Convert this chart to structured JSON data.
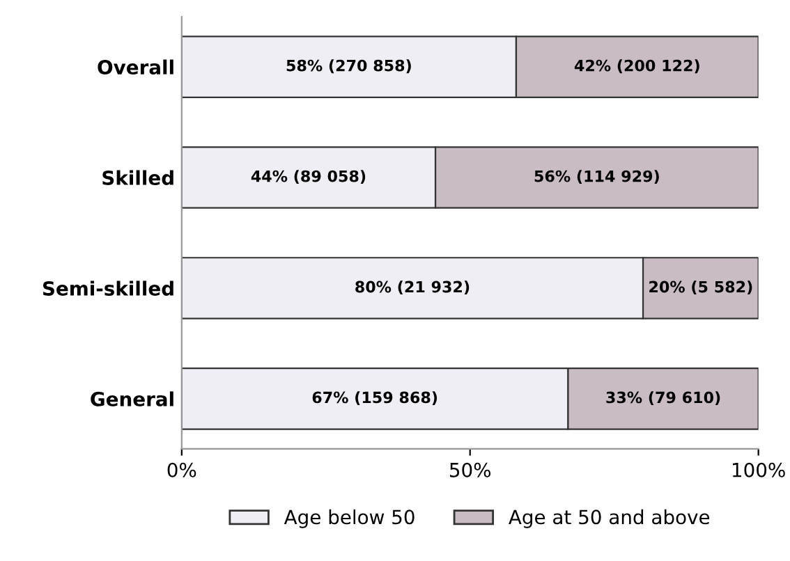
{
  "chart_data": {
    "type": "bar",
    "orientation": "horizontal",
    "stacked": true,
    "categories": [
      "Overall",
      "Skilled",
      "Semi-skilled",
      "General"
    ],
    "series": [
      {
        "name": "Age below 50",
        "color": "#eeeef4",
        "values": [
          58,
          44,
          80,
          67
        ],
        "value_labels": [
          "58% (270 858)",
          "44% (89 058)",
          "80% (21 932)",
          "67% (159 868)"
        ]
      },
      {
        "name": "Age at 50 and above",
        "color": "#c9bcc4",
        "values": [
          42,
          56,
          20,
          33
        ],
        "value_labels": [
          "42% (200 122)",
          "56% (114 929)",
          "20% (5 582)",
          "33% (79 610)"
        ]
      }
    ],
    "xlim": [
      0,
      100
    ],
    "xticks": [
      {
        "value": 0,
        "label": "0%"
      },
      {
        "value": 50,
        "label": "50%"
      },
      {
        "value": 100,
        "label": "100%"
      }
    ],
    "grid": false,
    "legend": "bottom"
  }
}
